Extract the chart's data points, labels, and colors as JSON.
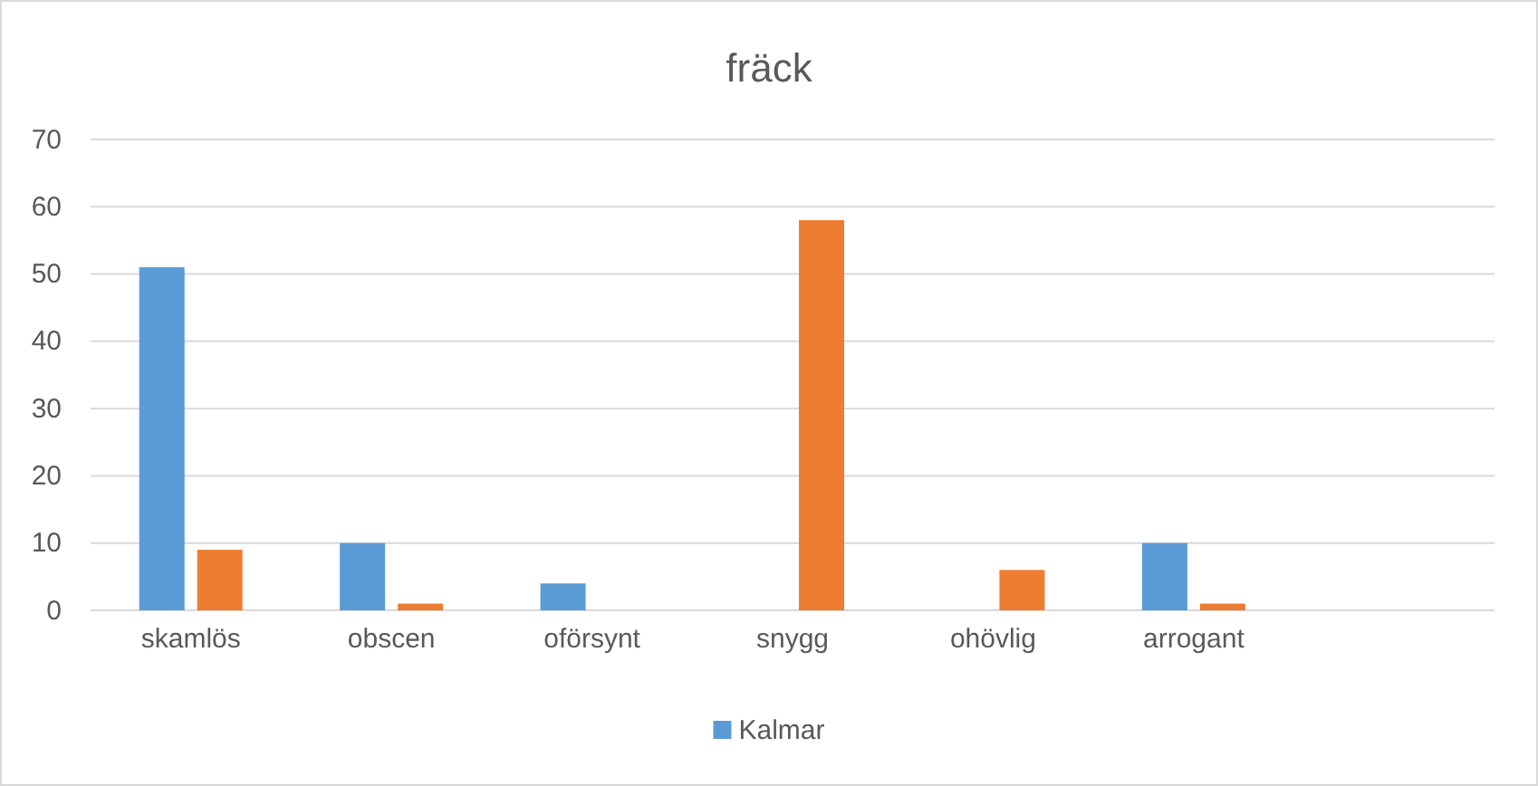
{
  "chart_data": {
    "type": "bar",
    "title": "fräck",
    "categories": [
      "skamlös",
      "obscen",
      "oförsynt",
      "snygg",
      "ohövlig",
      "arrogant",
      null
    ],
    "series": [
      {
        "name": "Kalmar",
        "color": "#5b9bd5",
        "values": [
          51,
          10,
          4,
          null,
          null,
          10,
          null
        ]
      },
      {
        "color": "#ed7d31",
        "values": [
          9,
          1,
          null,
          58,
          6,
          1,
          null
        ]
      }
    ],
    "ylim": [
      0,
      70
    ],
    "yticks": [
      0,
      10,
      20,
      30,
      40,
      50,
      60,
      70
    ],
    "grid": "y",
    "legend": "bottom"
  }
}
